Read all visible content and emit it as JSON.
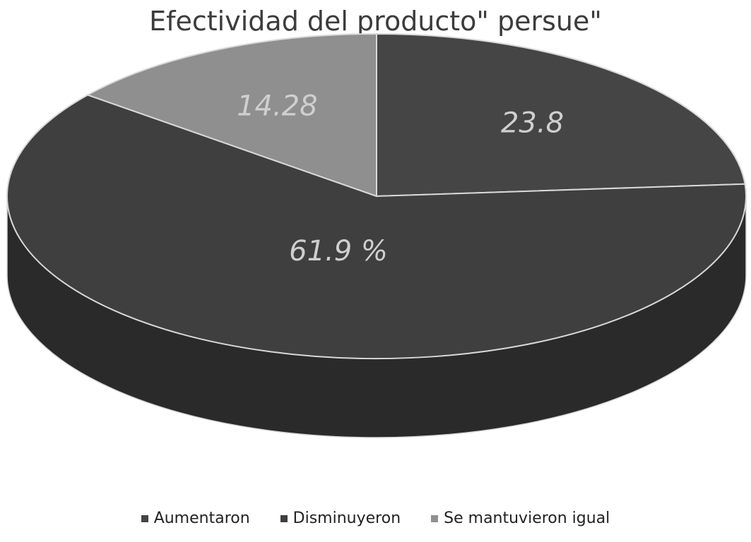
{
  "chart_data": {
    "type": "pie",
    "title": "Efectividad del producto\" persue\"",
    "categories": [
      "Aumentaron",
      "Disminuyeron",
      "Se mantuvieron igual"
    ],
    "values": [
      23.8,
      61.9,
      14.28
    ],
    "data_labels": [
      "23.8",
      "61.9 %",
      "14.28"
    ],
    "colors": [
      "#454545",
      "#3f3f3f",
      "#8f8f8f"
    ],
    "label_color": "#cfcfcf",
    "legend_position": "bottom",
    "style": "3d"
  }
}
